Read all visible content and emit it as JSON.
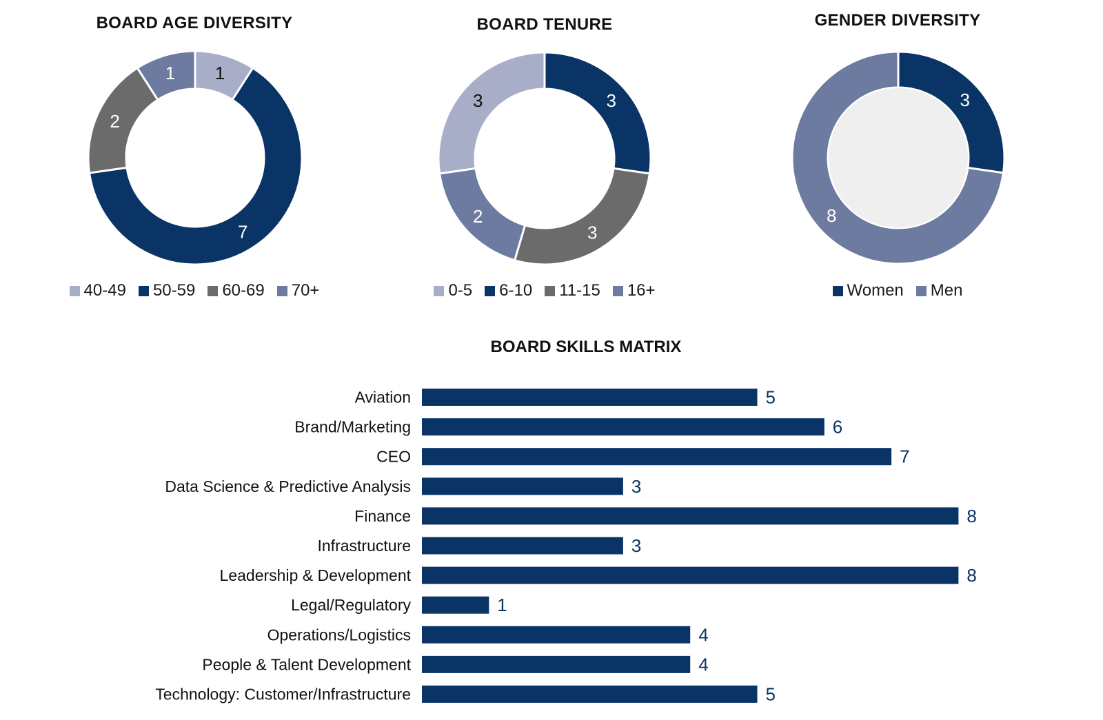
{
  "colors": {
    "navy": "#0b3466",
    "lavender": "#a9aec8",
    "gray": "#6b6b6b",
    "slate": "#6d7ba1",
    "center_fill_gender": "#efefef",
    "bar": "#0b3466",
    "value_text": "#0b3466"
  },
  "chart_data": [
    {
      "type": "donut",
      "title": "BOARD AGE DIVERSITY",
      "categories": [
        "40-49",
        "50-59",
        "60-69",
        "70+"
      ],
      "values": [
        1,
        7,
        2,
        1
      ],
      "colors": [
        "#a9aec8",
        "#0b3466",
        "#6b6b6b",
        "#6d7ba1"
      ],
      "label_colors": [
        "#111111",
        "#ffffff",
        "#ffffff",
        "#ffffff"
      ]
    },
    {
      "type": "donut",
      "title": "BOARD  TENURE",
      "categories": [
        "0-5",
        "6-10",
        "11-15",
        "16+"
      ],
      "values": [
        3,
        3,
        3,
        2
      ],
      "colors": [
        "#a9aec8",
        "#0b3466",
        "#6b6b6b",
        "#6d7ba1"
      ],
      "label_colors": [
        "#111111",
        "#ffffff",
        "#ffffff",
        "#ffffff"
      ],
      "segment_order": [
        1,
        2,
        3,
        0
      ]
    },
    {
      "type": "donut",
      "title": "GENDER DIVERSITY",
      "categories": [
        "Women",
        "Men"
      ],
      "values": [
        3,
        8
      ],
      "colors": [
        "#0b3466",
        "#6d7ba1"
      ],
      "label_colors": [
        "#ffffff",
        "#ffffff"
      ]
    },
    {
      "type": "bar",
      "orientation": "horizontal",
      "title": "BOARD SKILLS MATRIX",
      "categories": [
        "Aviation",
        "Brand/Marketing",
        "CEO",
        "Data Science & Predictive Analysis",
        "Finance",
        "Infrastructure",
        "Leadership & Development",
        "Legal/Regulatory",
        "Operations/Logistics",
        "People & Talent Development",
        "Technology: Customer/Infrastructure"
      ],
      "values": [
        5,
        6,
        7,
        3,
        8,
        3,
        8,
        1,
        4,
        4,
        5
      ],
      "xlim": [
        0,
        8
      ]
    }
  ]
}
